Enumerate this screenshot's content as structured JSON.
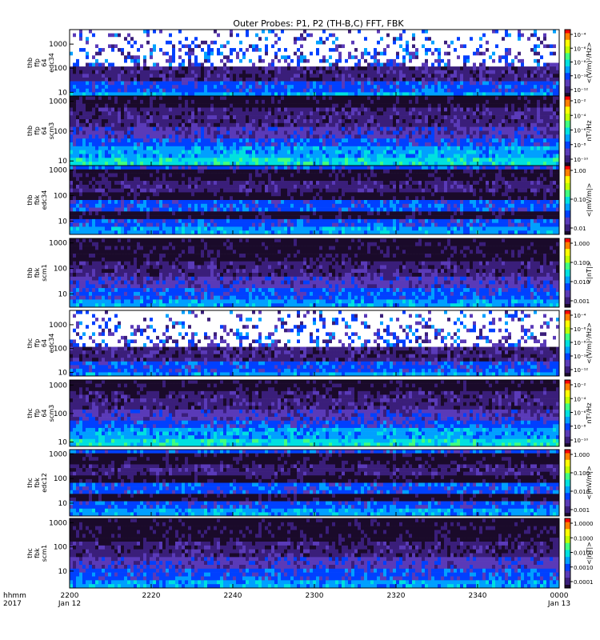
{
  "chart_data": {
    "type": "heatmap",
    "title": "Outer Probes: P1, P2 (TH-B,C) FFT, FBK",
    "x_axis": {
      "ticks": [
        "2200",
        "2220",
        "2240",
        "2300",
        "2320",
        "2340",
        "0000"
      ],
      "date_labels": [
        "Jan 12",
        "Jan 13"
      ],
      "row_labels": [
        "hhmm",
        "2017"
      ],
      "range": [
        "2017-01-12 22:00",
        "2017-01-13 00:00"
      ]
    },
    "y_scale": "log",
    "panels": [
      {
        "name": "thb ffp 64 edc34",
        "ylabel": [
          "thb",
          "ffp",
          "64",
          "edc34"
        ],
        "yticks": [
          "10",
          "100",
          "1000"
        ],
        "ylim": [
          7,
          4000
        ],
        "colorbar_label": "<(V/m)²/Hz>",
        "colorbar_ticks": [
          "10⁻⁴",
          "10⁻⁶",
          "10⁻⁸",
          "10⁻¹⁰",
          "10⁻¹²"
        ],
        "colorbar_range": [
          "1e-13",
          "1e-4"
        ]
      },
      {
        "name": "thb ffp 64 scm3",
        "ylabel": [
          "thb",
          "ffp",
          "64",
          "scm3"
        ],
        "yticks": [
          "10",
          "100",
          "1000"
        ],
        "ylim": [
          7,
          1500
        ],
        "colorbar_label": "nT²/Hz",
        "colorbar_ticks": [
          "10⁻²",
          "10⁻⁴",
          "10⁻⁶",
          "10⁻⁸",
          "10⁻¹⁰"
        ],
        "colorbar_range": [
          "1e-10",
          "1e-2"
        ]
      },
      {
        "name": "thb fbk edc34",
        "ylabel": [
          "thb",
          "fbk",
          "edc34"
        ],
        "yticks": [
          "10",
          "100",
          "1000"
        ],
        "ylim": [
          3,
          1500
        ],
        "colorbar_label": "<|mV/m|>",
        "colorbar_ticks": [
          "1.00",
          "0.10",
          "0.01"
        ],
        "colorbar_range": [
          "0.005",
          "2"
        ]
      },
      {
        "name": "thb fbk scm1",
        "ylabel": [
          "thb",
          "fbk",
          "scm1"
        ],
        "yticks": [
          "10",
          "100",
          "1000"
        ],
        "ylim": [
          3,
          1500
        ],
        "colorbar_label": "<|nT|>",
        "colorbar_ticks": [
          "1.000",
          "0.100",
          "0.010",
          "0.001"
        ],
        "colorbar_range": [
          "0.0005",
          "2"
        ]
      },
      {
        "name": "thc ffp 64 edc34",
        "ylabel": [
          "thc",
          "ffp",
          "64",
          "edc34"
        ],
        "yticks": [
          "10",
          "100",
          "1000"
        ],
        "ylim": [
          7,
          4000
        ],
        "colorbar_label": "<(V/m)²/Hz>",
        "colorbar_ticks": [
          "10⁻⁴",
          "10⁻⁶",
          "10⁻⁸",
          "10⁻¹⁰",
          "10⁻¹²"
        ],
        "colorbar_range": [
          "1e-13",
          "1e-4"
        ]
      },
      {
        "name": "thc ffp 64 scm3",
        "ylabel": [
          "thc",
          "ffp",
          "64",
          "scm3"
        ],
        "yticks": [
          "10",
          "100",
          "1000"
        ],
        "ylim": [
          7,
          1500
        ],
        "colorbar_label": "nT²/Hz",
        "colorbar_ticks": [
          "10⁻²",
          "10⁻⁴",
          "10⁻⁶",
          "10⁻⁸",
          "10⁻¹⁰"
        ],
        "colorbar_range": [
          "1e-10",
          "1e-2"
        ]
      },
      {
        "name": "thc fbk edc12",
        "ylabel": [
          "thc",
          "fbk",
          "edc12"
        ],
        "yticks": [
          "10",
          "100",
          "1000"
        ],
        "ylim": [
          3,
          1500
        ],
        "colorbar_label": "<|mV/m|>",
        "colorbar_ticks": [
          "1.000",
          "0.100",
          "0.010",
          "0.001"
        ],
        "colorbar_range": [
          "0.0005",
          "2"
        ]
      },
      {
        "name": "thc fbk scm1",
        "ylabel": [
          "thc",
          "fbk",
          "scm1"
        ],
        "yticks": [
          "10",
          "100",
          "1000"
        ],
        "ylim": [
          2,
          1500
        ],
        "colorbar_label": "<|nT|>",
        "colorbar_ticks": [
          "1.0000",
          "0.1000",
          "0.0100",
          "0.0010",
          "0.0001"
        ],
        "colorbar_range": [
          "0.00005",
          "2"
        ]
      }
    ],
    "colormap": [
      "#ffffff",
      "#1a0a2a",
      "#3a1e7a",
      "#5a3ab8",
      "#0040ff",
      "#00a0ff",
      "#00e0e0",
      "#40ff80",
      "#c0ff00",
      "#ffff00",
      "#ff8000",
      "#ff0000"
    ]
  }
}
